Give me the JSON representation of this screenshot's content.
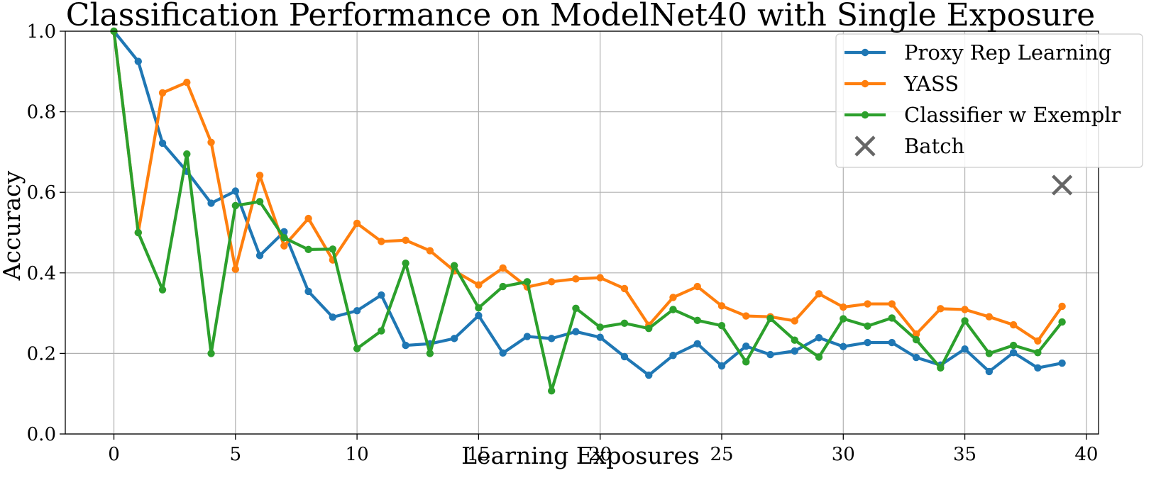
{
  "chart_data": {
    "type": "line",
    "title": "Classification Performance on ModelNet40 with Single Exposure",
    "xlabel": "Learning Exposures",
    "ylabel": "Accuracy",
    "xlim": [
      -2,
      40.5
    ],
    "ylim": [
      0.0,
      1.0
    ],
    "xticks": [
      0,
      5,
      10,
      15,
      20,
      25,
      30,
      35,
      40
    ],
    "yticks": [
      0.0,
      0.2,
      0.4,
      0.6,
      0.8,
      1.0
    ],
    "xtick_labels": [
      "0",
      "5",
      "10",
      "15",
      "20",
      "25",
      "30",
      "35",
      "40"
    ],
    "ytick_labels": [
      "0.0",
      "0.2",
      "0.4",
      "0.6",
      "0.8",
      "1.0"
    ],
    "grid": true,
    "legend_position": "top-right",
    "x": [
      0,
      1,
      2,
      3,
      4,
      5,
      6,
      7,
      8,
      9,
      10,
      11,
      12,
      13,
      14,
      15,
      16,
      17,
      18,
      19,
      20,
      21,
      22,
      23,
      24,
      25,
      26,
      27,
      28,
      29,
      30,
      31,
      32,
      33,
      34,
      35,
      36,
      37,
      38,
      39
    ],
    "series": [
      {
        "name": "Proxy Rep Learning",
        "color": "#1f77b4",
        "values": [
          1.0,
          0.925,
          0.722,
          0.652,
          0.573,
          0.603,
          0.443,
          0.502,
          0.354,
          0.29,
          0.306,
          0.345,
          0.22,
          0.224,
          0.237,
          0.294,
          0.201,
          0.242,
          0.237,
          0.254,
          0.24,
          0.192,
          0.146,
          0.195,
          0.224,
          0.169,
          0.218,
          0.197,
          0.206,
          0.239,
          0.217,
          0.227,
          0.227,
          0.19,
          0.171,
          0.211,
          0.155,
          0.202,
          0.164,
          0.176
        ]
      },
      {
        "name": "YASS",
        "color": "#ff7f0e",
        "values": [
          1.0,
          0.5,
          0.847,
          0.873,
          0.724,
          0.409,
          0.642,
          0.467,
          0.535,
          0.432,
          0.523,
          0.478,
          0.481,
          0.455,
          0.405,
          0.37,
          0.412,
          0.365,
          0.378,
          0.385,
          0.388,
          0.361,
          0.27,
          0.339,
          0.366,
          0.318,
          0.293,
          0.291,
          0.281,
          0.348,
          0.315,
          0.323,
          0.323,
          0.248,
          0.311,
          0.309,
          0.291,
          0.271,
          0.231,
          0.317
        ]
      },
      {
        "name": "Classifier w Exemplr",
        "color": "#2ca02c",
        "values": [
          1.0,
          0.5,
          0.358,
          0.695,
          0.2,
          0.567,
          0.577,
          0.487,
          0.458,
          0.459,
          0.212,
          0.256,
          0.424,
          0.2,
          0.418,
          0.313,
          0.366,
          0.378,
          0.107,
          0.312,
          0.265,
          0.275,
          0.262,
          0.309,
          0.282,
          0.269,
          0.179,
          0.287,
          0.233,
          0.191,
          0.286,
          0.268,
          0.288,
          0.234,
          0.164,
          0.281,
          0.2,
          0.22,
          0.202,
          0.278
        ]
      }
    ],
    "markers": [
      {
        "name": "Batch",
        "x": 39,
        "y": 0.618,
        "marker": "x",
        "color": "#666666"
      }
    ]
  }
}
